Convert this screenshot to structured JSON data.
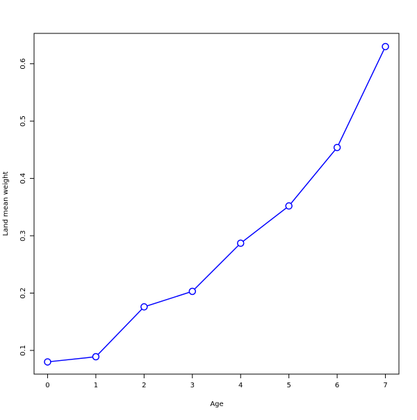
{
  "chart_data": {
    "type": "line",
    "title": "",
    "xlabel": "Age",
    "ylabel": "Land mean weight",
    "x": [
      0,
      1,
      2,
      3,
      4,
      5,
      6,
      7
    ],
    "series": [
      {
        "values": [
          0.08,
          0.089,
          0.176,
          0.203,
          0.287,
          0.352,
          0.454,
          0.63
        ],
        "color": "#0000ff",
        "marker": "open-circle"
      }
    ],
    "xticks": [
      "0",
      "1",
      "2",
      "3",
      "4",
      "5",
      "6",
      "7"
    ],
    "yticks": [
      "0.1",
      "0.2",
      "0.3",
      "0.4",
      "0.5",
      "0.6"
    ],
    "xlim": [
      -0.28,
      7.28
    ],
    "ylim": [
      0.0587,
      0.653
    ],
    "grid": false,
    "legend": "none"
  }
}
